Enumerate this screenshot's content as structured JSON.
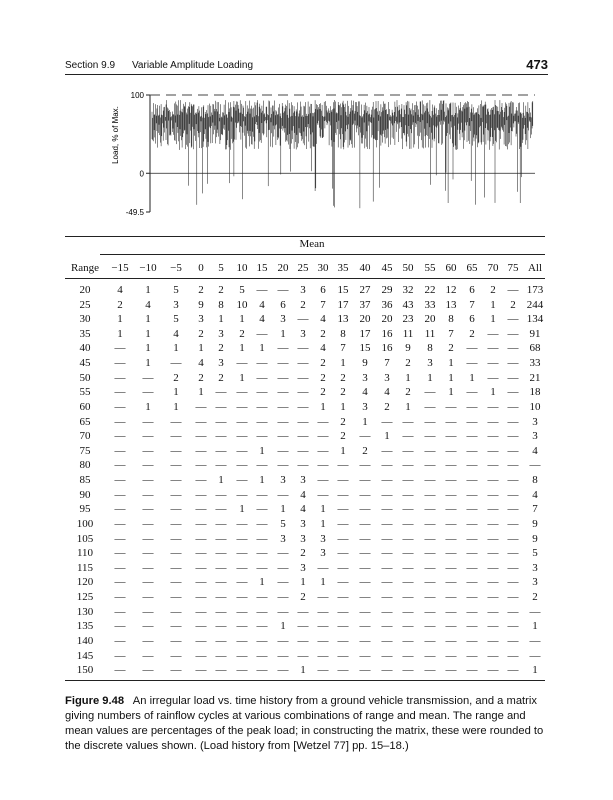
{
  "header": {
    "section": "Section 9.9",
    "title": "Variable Amplitude Loading",
    "page": "473"
  },
  "figure": {
    "y_label": "Load, % of Max.",
    "ylim": [
      -49.5,
      100
    ],
    "yticks": [
      100,
      0,
      -49.5
    ]
  },
  "table": {
    "group_label": "Mean",
    "header": [
      "Range",
      "−15",
      "−10",
      "−5",
      "0",
      "5",
      "10",
      "15",
      "20",
      "25",
      "30",
      "35",
      "40",
      "45",
      "50",
      "55",
      "60",
      "65",
      "70",
      "75",
      "All"
    ],
    "rows": [
      [
        "20",
        "4",
        "1",
        "5",
        "2",
        "2",
        "5",
        "—",
        "—",
        "3",
        "6",
        "15",
        "27",
        "29",
        "32",
        "22",
        "12",
        "6",
        "2",
        "—",
        "173"
      ],
      [
        "25",
        "2",
        "4",
        "3",
        "9",
        "8",
        "10",
        "4",
        "6",
        "2",
        "7",
        "17",
        "37",
        "36",
        "43",
        "33",
        "13",
        "7",
        "1",
        "2",
        "244"
      ],
      [
        "30",
        "1",
        "1",
        "5",
        "3",
        "1",
        "1",
        "4",
        "3",
        "—",
        "4",
        "13",
        "20",
        "20",
        "23",
        "20",
        "8",
        "6",
        "1",
        "—",
        "134"
      ],
      [
        "35",
        "1",
        "1",
        "4",
        "2",
        "3",
        "2",
        "—",
        "1",
        "3",
        "2",
        "8",
        "17",
        "16",
        "11",
        "11",
        "7",
        "2",
        "—",
        "—",
        "91"
      ],
      [
        "40",
        "—",
        "1",
        "1",
        "1",
        "2",
        "1",
        "1",
        "—",
        "—",
        "4",
        "7",
        "15",
        "16",
        "9",
        "8",
        "2",
        "—",
        "—",
        "—",
        "68"
      ],
      [
        "45",
        "—",
        "1",
        "—",
        "4",
        "3",
        "—",
        "—",
        "—",
        "—",
        "2",
        "1",
        "9",
        "7",
        "2",
        "3",
        "1",
        "—",
        "—",
        "—",
        "33"
      ],
      [
        "50",
        "—",
        "—",
        "2",
        "2",
        "2",
        "1",
        "—",
        "—",
        "—",
        "2",
        "2",
        "3",
        "3",
        "1",
        "1",
        "1",
        "1",
        "—",
        "—",
        "21"
      ],
      [
        "55",
        "—",
        "—",
        "1",
        "1",
        "—",
        "—",
        "—",
        "—",
        "—",
        "2",
        "2",
        "4",
        "4",
        "2",
        "—",
        "1",
        "—",
        "1",
        "—",
        "18"
      ],
      [
        "60",
        "—",
        "1",
        "1",
        "—",
        "—",
        "—",
        "—",
        "—",
        "—",
        "1",
        "1",
        "3",
        "2",
        "1",
        "—",
        "—",
        "—",
        "—",
        "—",
        "10"
      ],
      [
        "65",
        "—",
        "—",
        "—",
        "—",
        "—",
        "—",
        "—",
        "—",
        "—",
        "—",
        "2",
        "1",
        "—",
        "—",
        "—",
        "—",
        "—",
        "—",
        "—",
        "3"
      ],
      [
        "70",
        "—",
        "—",
        "—",
        "—",
        "—",
        "—",
        "—",
        "—",
        "—",
        "—",
        "2",
        "—",
        "1",
        "—",
        "—",
        "—",
        "—",
        "—",
        "—",
        "3"
      ],
      [
        "75",
        "—",
        "—",
        "—",
        "—",
        "—",
        "—",
        "1",
        "—",
        "—",
        "—",
        "1",
        "2",
        "—",
        "—",
        "—",
        "—",
        "—",
        "—",
        "—",
        "4"
      ],
      [
        "80",
        "—",
        "—",
        "—",
        "—",
        "—",
        "—",
        "—",
        "—",
        "—",
        "—",
        "—",
        "—",
        "—",
        "—",
        "—",
        "—",
        "—",
        "—",
        "—",
        "—"
      ],
      [
        "85",
        "—",
        "—",
        "—",
        "—",
        "1",
        "—",
        "1",
        "3",
        "3",
        "—",
        "—",
        "—",
        "—",
        "—",
        "—",
        "—",
        "—",
        "—",
        "—",
        "8"
      ],
      [
        "90",
        "—",
        "—",
        "—",
        "—",
        "—",
        "—",
        "—",
        "—",
        "4",
        "—",
        "—",
        "—",
        "—",
        "—",
        "—",
        "—",
        "—",
        "—",
        "—",
        "4"
      ],
      [
        "95",
        "—",
        "—",
        "—",
        "—",
        "—",
        "1",
        "—",
        "1",
        "4",
        "1",
        "—",
        "—",
        "—",
        "—",
        "—",
        "—",
        "—",
        "—",
        "—",
        "7"
      ],
      [
        "100",
        "—",
        "—",
        "—",
        "—",
        "—",
        "—",
        "—",
        "5",
        "3",
        "1",
        "—",
        "—",
        "—",
        "—",
        "—",
        "—",
        "—",
        "—",
        "—",
        "9"
      ],
      [
        "105",
        "—",
        "—",
        "—",
        "—",
        "—",
        "—",
        "—",
        "3",
        "3",
        "3",
        "—",
        "—",
        "—",
        "—",
        "—",
        "—",
        "—",
        "—",
        "—",
        "9"
      ],
      [
        "110",
        "—",
        "—",
        "—",
        "—",
        "—",
        "—",
        "—",
        "—",
        "2",
        "3",
        "—",
        "—",
        "—",
        "—",
        "—",
        "—",
        "—",
        "—",
        "—",
        "5"
      ],
      [
        "115",
        "—",
        "—",
        "—",
        "—",
        "—",
        "—",
        "—",
        "—",
        "3",
        "—",
        "—",
        "—",
        "—",
        "—",
        "—",
        "—",
        "—",
        "—",
        "—",
        "3"
      ],
      [
        "120",
        "—",
        "—",
        "—",
        "—",
        "—",
        "—",
        "1",
        "—",
        "1",
        "1",
        "—",
        "—",
        "—",
        "—",
        "—",
        "—",
        "—",
        "—",
        "—",
        "3"
      ],
      [
        "125",
        "—",
        "—",
        "—",
        "—",
        "—",
        "—",
        "—",
        "—",
        "2",
        "—",
        "—",
        "—",
        "—",
        "—",
        "—",
        "—",
        "—",
        "—",
        "—",
        "2"
      ],
      [
        "130",
        "—",
        "—",
        "—",
        "—",
        "—",
        "—",
        "—",
        "—",
        "—",
        "—",
        "—",
        "—",
        "—",
        "—",
        "—",
        "—",
        "—",
        "—",
        "—",
        "—"
      ],
      [
        "135",
        "—",
        "—",
        "—",
        "—",
        "—",
        "—",
        "—",
        "1",
        "—",
        "—",
        "—",
        "—",
        "—",
        "—",
        "—",
        "—",
        "—",
        "—",
        "—",
        "1"
      ],
      [
        "140",
        "—",
        "—",
        "—",
        "—",
        "—",
        "—",
        "—",
        "—",
        "—",
        "—",
        "—",
        "—",
        "—",
        "—",
        "—",
        "—",
        "—",
        "—",
        "—",
        "—"
      ],
      [
        "145",
        "—",
        "—",
        "—",
        "—",
        "—",
        "—",
        "—",
        "—",
        "—",
        "—",
        "—",
        "—",
        "—",
        "—",
        "—",
        "—",
        "—",
        "—",
        "—",
        "—"
      ],
      [
        "150",
        "—",
        "—",
        "—",
        "—",
        "—",
        "—",
        "—",
        "—",
        "1",
        "—",
        "—",
        "—",
        "—",
        "—",
        "—",
        "—",
        "—",
        "—",
        "—",
        "1"
      ]
    ]
  },
  "caption": {
    "label": "Figure 9.48",
    "text": "An irregular load vs. time history from a ground vehicle transmission, and a matrix giving numbers of rainflow cycles at various combinations of range and mean. The range and mean values are percentages of the peak load; in constructing the matrix, these were rounded to the discrete values shown. (Load history from [Wetzel 77] pp. 15–18.)"
  }
}
